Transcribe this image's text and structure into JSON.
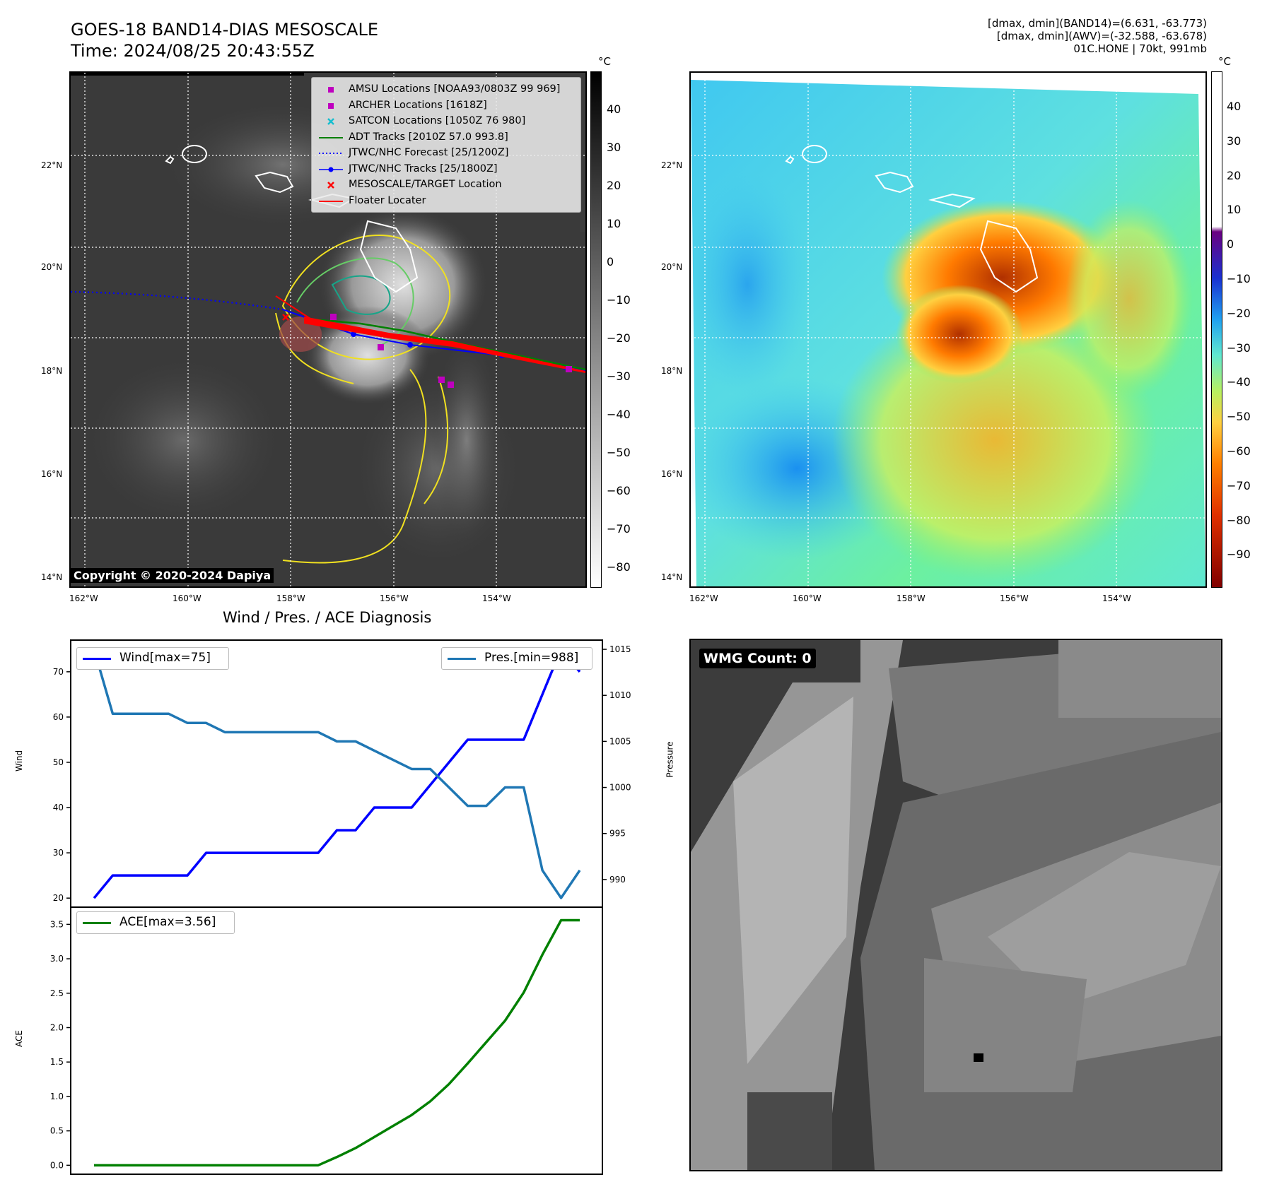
{
  "header": {
    "title_line1": "GOES-18 BAND14-DIAS MESOSCALE",
    "title_line2": "Time: 2024/08/25 20:43:55Z",
    "info_line1": "[dmax, dmin](BAND14)=(6.631, -63.773)",
    "info_line2": "[dmax, dmin](AWV)=(-32.588, -63.678)",
    "info_line3": "01C.HONE | 70kt, 991mb"
  },
  "map_axes": {
    "lat_labels": [
      "22°N",
      "20°N",
      "18°N",
      "16°N",
      "14°N"
    ],
    "lon_labels": [
      "162°W",
      "160°W",
      "158°W",
      "156°W",
      "154°W"
    ]
  },
  "ir_panel": {
    "unit": "°C",
    "colorbar_ticks": [
      "40",
      "30",
      "20",
      "10",
      "0",
      "−10",
      "−20",
      "−30",
      "−40",
      "−50",
      "−60",
      "−70",
      "−80"
    ],
    "copyright": "Copyright © 2020-2024 Dapiya",
    "legend": [
      {
        "label": "AMSU Locations [NOAA93/0803Z 99 969]",
        "symbol": "square",
        "color": "#bf00bf"
      },
      {
        "label": "ARCHER Locations [1618Z]",
        "symbol": "square",
        "color": "#bf00bf"
      },
      {
        "label": "SATCON Locations [1050Z 76 980]",
        "symbol": "x",
        "color": "#17becf"
      },
      {
        "label": "ADT Tracks [2010Z 57.0 993.8]",
        "symbol": "line",
        "color": "#008000"
      },
      {
        "label": "JTWC/NHC Forecast [25/1200Z]",
        "symbol": "dotted",
        "color": "#0000ff"
      },
      {
        "label": "JTWC/NHC Tracks [25/1800Z]",
        "symbol": "line-dot",
        "color": "#0000ff"
      },
      {
        "label": "MESOSCALE/TARGET Location",
        "symbol": "x",
        "color": "#ff0000"
      },
      {
        "label": "Floater Locater",
        "symbol": "line",
        "color": "#ff0000"
      }
    ]
  },
  "awv_panel": {
    "unit": "°C",
    "colorbar_ticks": [
      "40",
      "30",
      "20",
      "10",
      "0",
      "−10",
      "−20",
      "−30",
      "−40",
      "−50",
      "−60",
      "−70",
      "−80",
      "−90"
    ]
  },
  "wmg_panel": {
    "label": "WMG Count: 0"
  },
  "chart_data": [
    {
      "type": "line",
      "title": "Wind / Pres. / ACE Diagnosis",
      "x": [
        0,
        1,
        2,
        3,
        4,
        5,
        6,
        7,
        8,
        9,
        10,
        11,
        12,
        13,
        14,
        15,
        16,
        17,
        18,
        19,
        20,
        21,
        22,
        23,
        24,
        25,
        26
      ],
      "series": [
        {
          "name": "Wind[max=75]",
          "axis": "left",
          "color": "#0000ff",
          "values": [
            20,
            25,
            25,
            25,
            25,
            25,
            30,
            30,
            30,
            30,
            30,
            30,
            30,
            35,
            35,
            40,
            40,
            40,
            45,
            50,
            55,
            55,
            55,
            55,
            65,
            75,
            70
          ]
        },
        {
          "name": "Pres.[min=988]",
          "axis": "right",
          "color": "#1f77b4",
          "values": [
            1015,
            1008,
            1008,
            1008,
            1008,
            1007,
            1007,
            1006,
            1006,
            1006,
            1006,
            1006,
            1006,
            1005,
            1005,
            1004,
            1003,
            1002,
            1002,
            1000,
            998,
            998,
            1000,
            1000,
            991,
            988,
            991
          ]
        }
      ],
      "ylabel_left": "Wind",
      "ylabel_right": "Pressure",
      "ylim_left": [
        18,
        77
      ],
      "ylim_right": [
        987,
        1016
      ],
      "yticks_left": [
        20,
        30,
        40,
        50,
        60,
        70
      ],
      "yticks_right": [
        990,
        995,
        1000,
        1005,
        1010,
        1015
      ],
      "legend_left": "top-left",
      "legend_right": "top-right"
    },
    {
      "type": "line",
      "x": [
        0,
        1,
        2,
        3,
        4,
        5,
        6,
        7,
        8,
        9,
        10,
        11,
        12,
        13,
        14,
        15,
        16,
        17,
        18,
        19,
        20,
        21,
        22,
        23,
        24,
        25,
        26
      ],
      "series": [
        {
          "name": "ACE[max=3.56]",
          "color": "#008000",
          "values": [
            0,
            0,
            0,
            0,
            0,
            0,
            0,
            0,
            0,
            0,
            0,
            0,
            0,
            0.12,
            0.25,
            0.41,
            0.57,
            0.73,
            0.93,
            1.18,
            1.48,
            1.79,
            2.1,
            2.51,
            3.06,
            3.56,
            3.56
          ]
        }
      ],
      "ylabel": "ACE",
      "ylim": [
        -0.13,
        3.75
      ],
      "yticks": [
        "0.0",
        "0.5",
        "1.0",
        "1.5",
        "2.0",
        "2.5",
        "3.0",
        "3.5"
      ],
      "legend": "top-left"
    }
  ]
}
